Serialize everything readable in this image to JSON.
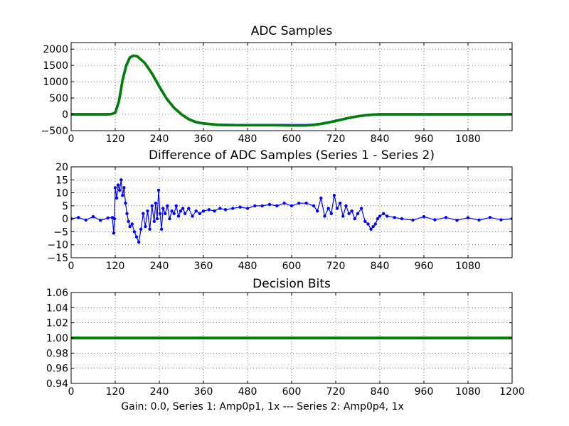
{
  "figure": {
    "caption": "Gain: 0.0, Series 1: Amp0p1, 1x --- Series 2: Amp0p4, 1x",
    "colors": {
      "series1": "#0000ff",
      "series2": "#008000",
      "grid": "#000000",
      "axes": "#000000"
    }
  },
  "chart_data": [
    {
      "type": "line",
      "title": "ADC Samples",
      "xlabel": "",
      "ylabel": "",
      "xlim": [
        0,
        1200
      ],
      "ylim": [
        -500,
        2200
      ],
      "xticks": [
        0,
        120,
        240,
        360,
        480,
        600,
        720,
        840,
        960,
        1080
      ],
      "yticks": [
        -500,
        0,
        500,
        1000,
        1500,
        2000
      ],
      "grid": true,
      "series": [
        {
          "name": "Series 1",
          "color": "#0000ff",
          "x": [
            0,
            100,
            110,
            120,
            130,
            140,
            150,
            160,
            170,
            180,
            200,
            220,
            240,
            260,
            280,
            300,
            320,
            340,
            360,
            400,
            450,
            500,
            550,
            600,
            640,
            660,
            680,
            700,
            720,
            740,
            760,
            780,
            800,
            820,
            840,
            900,
            1000,
            1100,
            1200
          ],
          "values": [
            0,
            0,
            10,
            50,
            400,
            1050,
            1500,
            1750,
            1800,
            1780,
            1580,
            1250,
            850,
            480,
            200,
            0,
            -150,
            -240,
            -280,
            -320,
            -330,
            -330,
            -330,
            -335,
            -335,
            -320,
            -290,
            -250,
            -200,
            -150,
            -100,
            -60,
            -30,
            -10,
            0,
            0,
            0,
            0,
            0
          ]
        },
        {
          "name": "Series 2",
          "color": "#008000",
          "x": [
            0,
            100,
            110,
            120,
            130,
            140,
            150,
            160,
            170,
            180,
            200,
            220,
            240,
            260,
            280,
            300,
            320,
            340,
            360,
            400,
            450,
            500,
            550,
            600,
            640,
            660,
            680,
            700,
            720,
            740,
            760,
            780,
            800,
            820,
            840,
            900,
            1000,
            1100,
            1200
          ],
          "values": [
            0,
            0,
            10,
            48,
            392,
            1040,
            1492,
            1745,
            1797,
            1779,
            1582,
            1252,
            852,
            482,
            203,
            3,
            -147,
            -238,
            -279,
            -323,
            -335,
            -334,
            -335,
            -340,
            -340,
            -325,
            -293,
            -252,
            -203,
            -151,
            -100,
            -61,
            -31,
            -10,
            0,
            0,
            0,
            0,
            0
          ]
        }
      ]
    },
    {
      "type": "line",
      "title": "Difference of ADC Samples (Series 1 - Series 2)",
      "xlabel": "",
      "ylabel": "",
      "xlim": [
        0,
        1200
      ],
      "ylim": [
        -15,
        20
      ],
      "xticks": [
        0,
        120,
        240,
        360,
        480,
        600,
        720,
        840,
        960,
        1080
      ],
      "yticks": [
        -15,
        -10,
        -5,
        0,
        5,
        10,
        15,
        20
      ],
      "grid": true,
      "series": [
        {
          "name": "Series 1 - Series 2",
          "color": "#0000ff",
          "x": [
            0,
            20,
            40,
            60,
            80,
            100,
            112,
            116,
            118,
            120,
            124,
            128,
            132,
            136,
            140,
            144,
            148,
            152,
            156,
            160,
            166,
            172,
            178,
            184,
            190,
            196,
            202,
            208,
            214,
            220,
            226,
            230,
            234,
            238,
            242,
            246,
            250,
            256,
            262,
            268,
            274,
            280,
            286,
            292,
            298,
            304,
            310,
            320,
            330,
            340,
            350,
            360,
            375,
            390,
            405,
            420,
            440,
            460,
            480,
            500,
            520,
            540,
            560,
            580,
            600,
            620,
            640,
            660,
            670,
            680,
            690,
            700,
            708,
            716,
            724,
            732,
            740,
            748,
            756,
            764,
            772,
            780,
            790,
            800,
            808,
            816,
            822,
            828,
            834,
            840,
            850,
            860,
            880,
            900,
            930,
            960,
            990,
            1020,
            1050,
            1080,
            1110,
            1140,
            1170,
            1200
          ],
          "values": [
            0,
            0.5,
            -0.5,
            0.8,
            -0.6,
            0.3,
            0.5,
            -5.5,
            0,
            12,
            8,
            13,
            11,
            15,
            9,
            12,
            6,
            2,
            -1,
            -3,
            -2,
            -5,
            -7,
            -9,
            -4,
            2,
            -3,
            3,
            -4,
            5,
            -1,
            6,
            0,
            11,
            2,
            -4,
            4,
            2,
            5,
            0,
            3,
            2,
            5,
            1,
            3,
            4,
            2,
            4,
            1,
            3,
            2,
            3,
            3.5,
            3,
            4,
            3.5,
            4,
            4.5,
            4,
            5,
            5,
            5.5,
            5,
            6,
            5,
            6,
            6,
            5,
            3,
            8,
            1,
            4,
            2,
            9,
            4,
            6,
            1,
            5,
            2,
            3,
            0,
            2,
            4,
            -1,
            -2,
            -4,
            -3,
            -2,
            0,
            1,
            2,
            1,
            0.5,
            0,
            -0.5,
            0.8,
            -0.4,
            0.5,
            -0.6,
            0.4,
            -0.5,
            0.5,
            -0.4,
            0
          ]
        }
      ]
    },
    {
      "type": "line",
      "title": "Decision Bits",
      "xlabel": "Gain: 0.0, Series 1: Amp0p1, 1x --- Series 2: Amp0p4, 1x",
      "ylabel": "",
      "xlim": [
        0,
        1200
      ],
      "ylim": [
        0.94,
        1.06
      ],
      "xticks": [
        0,
        120,
        240,
        360,
        480,
        600,
        720,
        840,
        960,
        1080,
        1200
      ],
      "yticks": [
        0.94,
        0.96,
        0.98,
        1.0,
        1.02,
        1.04,
        1.06
      ],
      "ytick_labels": [
        "0.94",
        "0.96",
        "0.98",
        "1.00",
        "1.02",
        "1.04",
        "1.06"
      ],
      "grid": true,
      "series": [
        {
          "name": "Series 1",
          "color": "#0000ff",
          "x": [
            0,
            1200
          ],
          "values": [
            1.0,
            1.0
          ]
        },
        {
          "name": "Series 2",
          "color": "#008000",
          "x": [
            0,
            1200
          ],
          "values": [
            1.0,
            1.0
          ]
        }
      ]
    }
  ]
}
